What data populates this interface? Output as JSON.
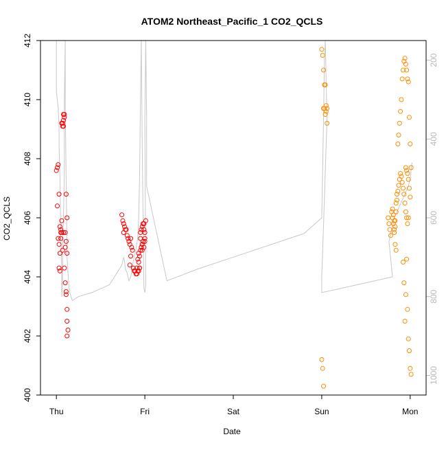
{
  "chart_data": {
    "type": "scatter",
    "title": "ATOM2 Northeast_Pacific_1 CO2_QCLS",
    "xlabel": "Date",
    "ylabel": "CO2_QCLS",
    "ylim": [
      400,
      412
    ],
    "y_ticks": [
      "400",
      "402",
      "404",
      "406",
      "408",
      "410",
      "412"
    ],
    "x_ticks": [
      "Thu",
      "Fri",
      "Sat",
      "Sun",
      "Mon"
    ],
    "x_tick_values": [
      0,
      1,
      2,
      3,
      4
    ],
    "y2_label": "",
    "y2_lim": [
      1050,
      150
    ],
    "y2_ticks": [
      "200",
      "400",
      "600",
      "800",
      "1000"
    ],
    "grid": false,
    "colors": {
      "series1": "#ff0000",
      "series2": "#ff8c00",
      "secondary_line": "#c8c8c8",
      "right_axis": "#b9b9b9"
    },
    "series": [
      {
        "color": "#ff0000",
        "x": [
          0.0,
          0.01,
          0.02,
          0.03,
          0.01,
          0.02,
          0.03,
          0.04,
          0.03,
          0.04,
          0.05,
          0.04,
          0.06,
          0.05,
          0.07,
          0.05,
          0.06,
          0.07,
          0.08,
          0.07,
          0.06,
          0.08,
          0.09,
          0.08,
          0.09,
          0.08,
          0.1,
          0.09,
          0.1,
          0.11,
          0.11,
          0.12,
          0.12,
          0.13,
          0.12,
          0.11,
          0.12,
          0.1,
          0.11,
          0.12,
          0.74,
          0.75,
          0.76,
          0.77,
          0.78,
          0.76,
          0.79,
          0.8,
          0.81,
          0.82,
          0.83,
          0.84,
          0.85,
          0.86,
          0.84,
          0.83,
          0.87,
          0.88,
          0.89,
          0.9,
          0.91,
          0.92,
          0.93,
          0.94,
          0.95,
          0.96,
          0.97,
          0.98,
          0.95,
          0.96,
          0.97,
          0.93,
          0.94,
          0.92,
          0.91,
          0.93,
          0.94,
          0.95,
          0.96,
          0.97,
          0.98,
          0.99,
          1.0,
          0.98,
          0.97,
          0.99,
          1.0,
          1.01,
          0.99,
          1.0
        ],
        "y": [
          407.6,
          407.7,
          407.8,
          406.8,
          406.4,
          405.3,
          405.1,
          404.8,
          404.3,
          404.2,
          405.5,
          405.7,
          405.5,
          405.3,
          404.9,
          405.6,
          405.9,
          409.1,
          409.1,
          409.2,
          409.2,
          409.3,
          409.4,
          409.5,
          409.5,
          405.5,
          405.0,
          404.3,
          403.8,
          403.5,
          403.4,
          402.9,
          402.5,
          402.2,
          402.0,
          406.8,
          406.0,
          405.5,
          405.2,
          404.8,
          406.1,
          405.9,
          405.8,
          405.7,
          405.6,
          405.5,
          405.6,
          405.4,
          405.3,
          405.2,
          405.1,
          405.3,
          405.0,
          404.9,
          404.7,
          404.4,
          404.3,
          404.2,
          404.2,
          404.1,
          404.3,
          404.6,
          404.8,
          404.7,
          404.9,
          405.0,
          405.1,
          405.2,
          405.3,
          405.0,
          404.9,
          404.5,
          404.3,
          404.2,
          404.1,
          404.2,
          404.3,
          405.5,
          405.6,
          405.7,
          405.8,
          405.6,
          405.5,
          405.2,
          405.1,
          405.0,
          405.2,
          405.9,
          405.8,
          405.3
        ]
      },
      {
        "color": "#ff8c00",
        "x": [
          3.0,
          3.01,
          3.02,
          3.03,
          3.04,
          3.02,
          3.03,
          3.05,
          3.04,
          3.06,
          3.05,
          3.06,
          3.0,
          3.01,
          3.02,
          3.75,
          3.76,
          3.77,
          3.78,
          3.79,
          3.8,
          3.81,
          3.82,
          3.83,
          3.84,
          3.85,
          3.8,
          3.81,
          3.82,
          3.83,
          3.84,
          3.85,
          3.86,
          3.87,
          3.88,
          3.89,
          3.9,
          3.91,
          3.92,
          3.93,
          3.94,
          3.95,
          3.96,
          3.97,
          3.98,
          3.86,
          3.87,
          3.88,
          3.89,
          3.9,
          3.91,
          3.92,
          3.93,
          3.94,
          3.95,
          3.96,
          3.97,
          3.98,
          3.99,
          4.0,
          4.01,
          3.92,
          3.93,
          3.94,
          3.95,
          3.96,
          3.97,
          3.98,
          3.99,
          4.0,
          4.01,
          3.95,
          3.96,
          3.97,
          3.98,
          3.99,
          4.0,
          3.82,
          3.83,
          3.84
        ],
        "y": [
          411.7,
          411.5,
          411.0,
          410.5,
          410.5,
          409.7,
          409.7,
          409.8,
          409.5,
          409.2,
          409.6,
          409.7,
          401.2,
          400.9,
          400.3,
          406.0,
          405.8,
          405.6,
          405.4,
          406.2,
          406.3,
          406.1,
          405.9,
          405.7,
          406.5,
          406.8,
          406.0,
          405.8,
          405.6,
          405.9,
          406.2,
          406.6,
          406.9,
          407.1,
          407.3,
          407.5,
          407.4,
          407.2,
          407.0,
          406.8,
          406.5,
          406.2,
          406.0,
          405.8,
          406.0,
          408.5,
          408.8,
          409.2,
          409.6,
          410.0,
          410.7,
          411.0,
          411.3,
          411.4,
          411.2,
          411.0,
          410.7,
          410.6,
          409.4,
          408.5,
          407.7,
          404.5,
          403.8,
          402.5,
          403.4,
          404.6,
          402.9,
          401.9,
          401.5,
          400.9,
          400.7,
          407.7,
          407.6,
          407.5,
          407.3,
          407.0,
          406.7,
          405.5,
          405.1,
          404.9
        ]
      }
    ],
    "secondary_line": {
      "color": "#c8c8c8",
      "x": [
        0.0,
        0.0,
        0.01,
        0.02,
        0.03,
        0.03,
        0.04,
        0.05,
        0.06,
        0.06,
        0.07,
        0.07,
        0.08,
        0.09,
        0.09,
        0.1,
        0.1,
        0.11,
        0.12,
        0.14,
        0.15,
        0.18,
        0.25,
        0.4,
        0.6,
        0.74,
        0.76,
        0.77,
        0.78,
        0.8,
        0.82,
        0.84,
        0.85,
        0.86,
        0.88,
        0.9,
        0.92,
        0.93,
        0.94,
        0.95,
        0.96,
        0.97,
        0.98,
        0.99,
        1.0,
        1.01,
        1.0,
        1.01,
        1.02,
        1.02,
        1.25,
        1.6,
        2.0,
        2.4,
        2.8,
        3.0,
        3.01,
        3.02,
        3.03,
        3.04,
        3.05,
        3.06,
        3.04,
        3.02,
        3.0,
        3.0,
        3.2,
        3.4,
        3.6,
        3.8,
        3.76,
        3.78,
        3.8,
        3.82,
        3.84,
        3.86,
        3.88,
        3.9,
        3.92,
        3.94,
        3.96,
        3.98,
        4.0,
        4.01,
        4.02
      ],
      "y": [
        150,
        280,
        300,
        320,
        370,
        420,
        500,
        640,
        720,
        800,
        760,
        680,
        600,
        480,
        300,
        150,
        320,
        500,
        700,
        770,
        790,
        810,
        800,
        790,
        770,
        720,
        700,
        710,
        730,
        740,
        760,
        750,
        740,
        720,
        700,
        680,
        650,
        600,
        500,
        300,
        150,
        400,
        600,
        780,
        790,
        770,
        350,
        150,
        340,
        520,
        760,
        730,
        700,
        670,
        640,
        600,
        480,
        350,
        200,
        150,
        250,
        350,
        480,
        620,
        750,
        790,
        780,
        770,
        760,
        750,
        660,
        640,
        620,
        600,
        590,
        580,
        570,
        560,
        550,
        540,
        530,
        520,
        500,
        480,
        460
      ]
    }
  }
}
